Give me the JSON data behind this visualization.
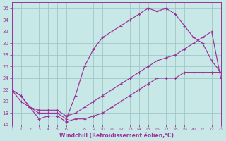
{
  "bg_color": "#c8e8e8",
  "grid_color": "#a0c8c8",
  "line_color": "#993399",
  "xlim": [
    0,
    23
  ],
  "ylim": [
    16,
    37
  ],
  "xtick_vals": [
    0,
    1,
    2,
    3,
    4,
    5,
    6,
    7,
    8,
    9,
    10,
    11,
    12,
    13,
    14,
    15,
    16,
    17,
    18,
    19,
    20,
    21,
    22,
    23
  ],
  "ytick_vals": [
    16,
    18,
    20,
    22,
    24,
    26,
    28,
    30,
    32,
    34,
    36
  ],
  "xlabel": "Windchill (Refroidissement éolien,°C)",
  "series1_x": [
    0,
    1,
    2,
    3,
    4,
    5,
    6,
    7,
    8,
    9,
    10,
    11,
    12,
    13,
    14,
    15,
    16,
    17,
    18,
    19,
    20,
    21,
    22,
    23
  ],
  "series1_y": [
    22,
    20,
    19,
    18,
    18,
    18,
    17,
    21,
    26,
    29,
    31,
    32,
    33,
    34,
    35,
    36,
    35.5,
    36,
    35,
    33,
    31,
    30,
    27,
    25
  ],
  "series2_x": [
    0,
    1,
    2,
    3,
    4,
    5,
    6,
    7,
    8,
    9,
    10,
    11,
    12,
    13,
    14,
    15,
    16,
    17,
    18,
    19,
    20,
    21,
    22,
    23
  ],
  "series2_y": [
    22,
    21,
    19,
    18.5,
    18.5,
    18.5,
    17.5,
    18,
    19,
    20,
    21,
    22,
    23,
    24,
    25,
    26,
    27,
    27.5,
    28,
    29,
    30,
    31,
    32,
    24
  ],
  "series3_x": [
    0,
    1,
    2,
    3,
    4,
    5,
    6,
    7,
    8,
    9,
    10,
    11,
    12,
    13,
    14,
    15,
    16,
    17,
    18,
    19,
    20,
    21,
    22,
    23
  ],
  "series3_y": [
    22,
    21,
    19,
    17,
    17.5,
    17.5,
    16.5,
    17,
    17,
    17.5,
    18,
    19,
    20,
    21,
    22,
    23,
    24,
    24,
    24,
    25,
    25,
    25,
    25,
    25
  ]
}
